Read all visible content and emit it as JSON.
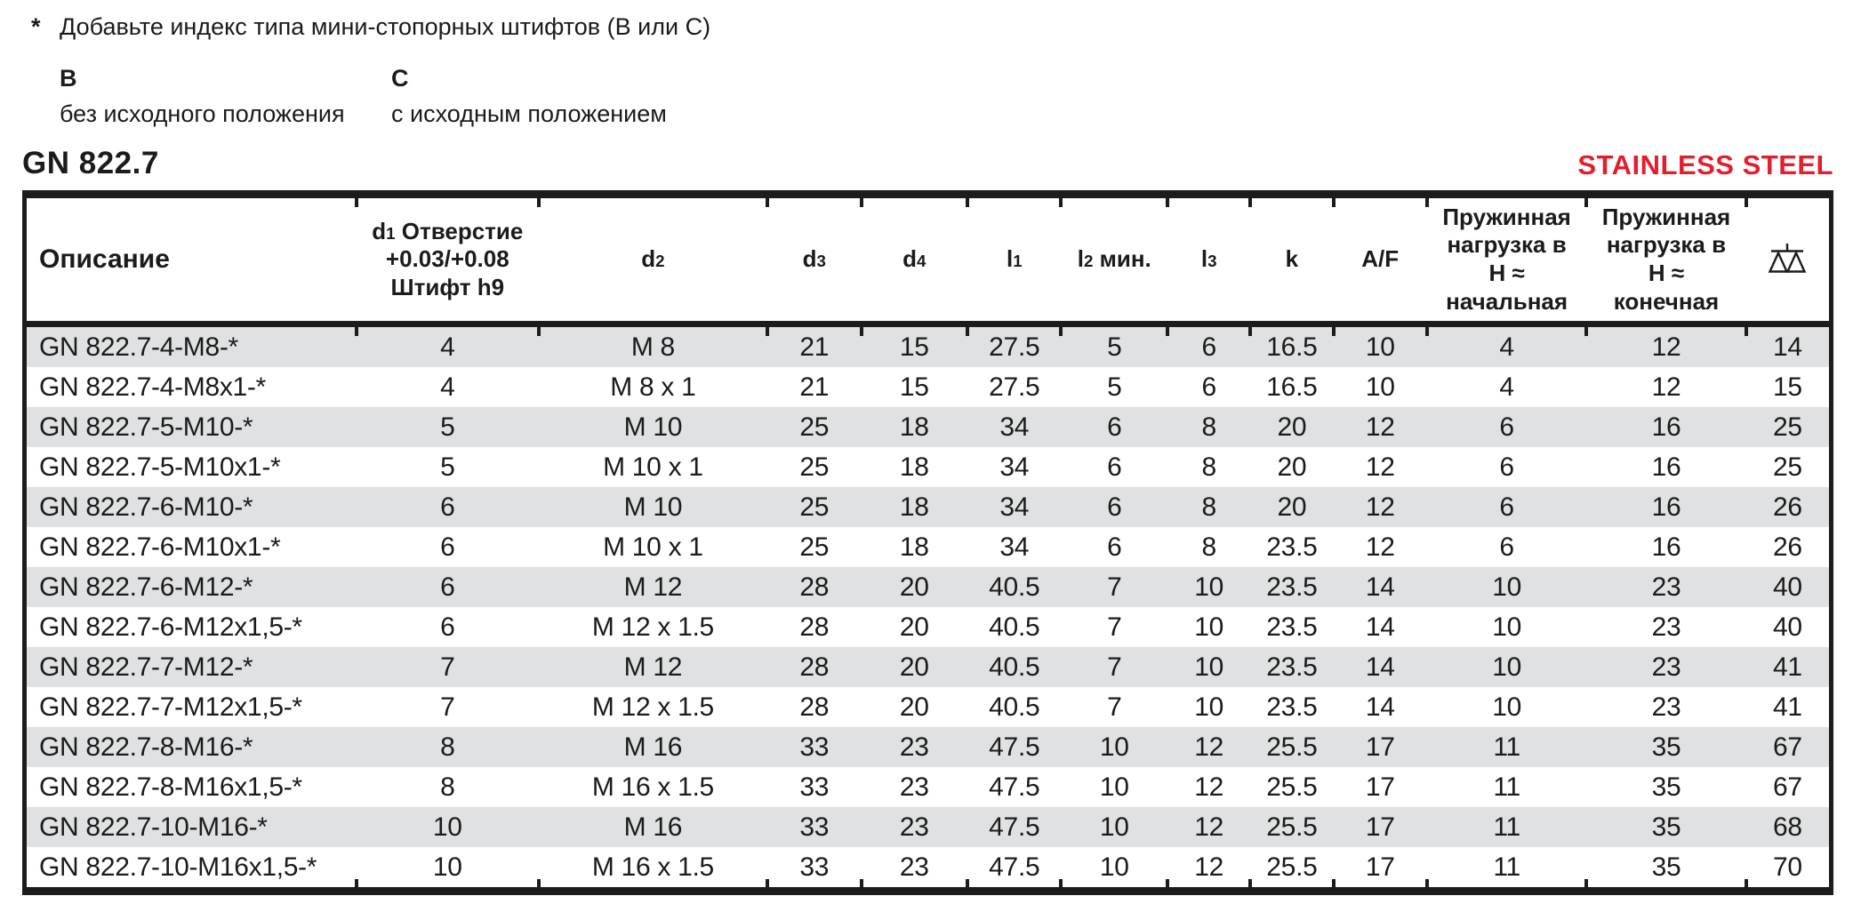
{
  "note": {
    "symbol": "*",
    "text": "Добавьте индекс типа мини-стопорных штифтов (B или C)"
  },
  "types": [
    {
      "code": "B",
      "description": "без исходного положения"
    },
    {
      "code": "C",
      "description": "с исходным положением"
    }
  ],
  "product": {
    "title": "GN 822.7",
    "badge": "STAINLESS STEEL"
  },
  "colors": {
    "badge": "#e31e2d",
    "row_stripe": "#e0e1e2",
    "line": "#1c1c1c"
  },
  "table": {
    "columns": [
      {
        "id": "description",
        "lines": [
          [
            {
              "t": "Описание"
            }
          ]
        ]
      },
      {
        "id": "d1",
        "lines": [
          [
            {
              "t": "d"
            },
            {
              "sub": "1"
            },
            {
              "t": " Отверстие"
            }
          ],
          [
            {
              "t": "+0.03/+0.08"
            }
          ],
          [
            {
              "t": "Штифт h9"
            }
          ]
        ]
      },
      {
        "id": "d2",
        "lines": [
          [
            {
              "t": "d"
            },
            {
              "sub": "2"
            }
          ]
        ]
      },
      {
        "id": "d3",
        "lines": [
          [
            {
              "t": "d"
            },
            {
              "sub": "3"
            }
          ]
        ]
      },
      {
        "id": "d4",
        "lines": [
          [
            {
              "t": "d"
            },
            {
              "sub": "4"
            }
          ]
        ]
      },
      {
        "id": "l1",
        "lines": [
          [
            {
              "t": "l"
            },
            {
              "sub": "1"
            }
          ]
        ]
      },
      {
        "id": "l2-min",
        "lines": [
          [
            {
              "t": "l"
            },
            {
              "sub": "2"
            },
            {
              "t": " мин."
            }
          ]
        ]
      },
      {
        "id": "l3",
        "lines": [
          [
            {
              "t": "l"
            },
            {
              "sub": "3"
            }
          ]
        ]
      },
      {
        "id": "k",
        "lines": [
          [
            {
              "t": "k"
            }
          ]
        ]
      },
      {
        "id": "af",
        "lines": [
          [
            {
              "t": "A/F"
            }
          ]
        ]
      },
      {
        "id": "spring-load-initial",
        "lines": [
          [
            {
              "t": "Пружинная"
            }
          ],
          [
            {
              "t": "нагрузка в"
            }
          ],
          [
            {
              "t": "H ≈"
            }
          ],
          [
            {
              "t": "начальная"
            }
          ]
        ]
      },
      {
        "id": "spring-load-final",
        "lines": [
          [
            {
              "t": "Пружинная"
            }
          ],
          [
            {
              "t": "нагрузка в"
            }
          ],
          [
            {
              "t": "H ≈"
            }
          ],
          [
            {
              "t": "конечная"
            }
          ]
        ]
      },
      {
        "id": "weight",
        "icon": "scale-icon"
      }
    ],
    "rows": [
      [
        "GN 822.7-4-M8-*",
        "4",
        "M 8",
        "21",
        "15",
        "27.5",
        "5",
        "6",
        "16.5",
        "10",
        "4",
        "12",
        "14"
      ],
      [
        "GN 822.7-4-M8x1-*",
        "4",
        "M 8 x 1",
        "21",
        "15",
        "27.5",
        "5",
        "6",
        "16.5",
        "10",
        "4",
        "12",
        "15"
      ],
      [
        "GN 822.7-5-M10-*",
        "5",
        "M 10",
        "25",
        "18",
        "34",
        "6",
        "8",
        "20",
        "12",
        "6",
        "16",
        "25"
      ],
      [
        "GN 822.7-5-M10x1-*",
        "5",
        "M 10 x 1",
        "25",
        "18",
        "34",
        "6",
        "8",
        "20",
        "12",
        "6",
        "16",
        "25"
      ],
      [
        "GN 822.7-6-M10-*",
        "6",
        "M 10",
        "25",
        "18",
        "34",
        "6",
        "8",
        "20",
        "12",
        "6",
        "16",
        "26"
      ],
      [
        "GN 822.7-6-M10x1-*",
        "6",
        "M 10 x 1",
        "25",
        "18",
        "34",
        "6",
        "8",
        "23.5",
        "12",
        "6",
        "16",
        "26"
      ],
      [
        "GN 822.7-6-M12-*",
        "6",
        "M 12",
        "28",
        "20",
        "40.5",
        "7",
        "10",
        "23.5",
        "14",
        "10",
        "23",
        "40"
      ],
      [
        "GN 822.7-6-M12x1,5-*",
        "6",
        "M 12 x 1.5",
        "28",
        "20",
        "40.5",
        "7",
        "10",
        "23.5",
        "14",
        "10",
        "23",
        "40"
      ],
      [
        "GN 822.7-7-M12-*",
        "7",
        "M 12",
        "28",
        "20",
        "40.5",
        "7",
        "10",
        "23.5",
        "14",
        "10",
        "23",
        "41"
      ],
      [
        "GN 822.7-7-M12x1,5-*",
        "7",
        "M 12 x 1.5",
        "28",
        "20",
        "40.5",
        "7",
        "10",
        "23.5",
        "14",
        "10",
        "23",
        "41"
      ],
      [
        "GN 822.7-8-M16-*",
        "8",
        "M 16",
        "33",
        "23",
        "47.5",
        "10",
        "12",
        "25.5",
        "17",
        "11",
        "35",
        "67"
      ],
      [
        "GN 822.7-8-M16x1,5-*",
        "8",
        "M 16 x 1.5",
        "33",
        "23",
        "47.5",
        "10",
        "12",
        "25.5",
        "17",
        "11",
        "35",
        "67"
      ],
      [
        "GN 822.7-10-M16-*",
        "10",
        "M 16",
        "33",
        "23",
        "47.5",
        "10",
        "12",
        "25.5",
        "17",
        "11",
        "35",
        "68"
      ],
      [
        "GN 822.7-10-M16x1,5-*",
        "10",
        "M 16 x 1.5",
        "33",
        "23",
        "47.5",
        "10",
        "12",
        "25.5",
        "17",
        "11",
        "35",
        "70"
      ]
    ]
  }
}
